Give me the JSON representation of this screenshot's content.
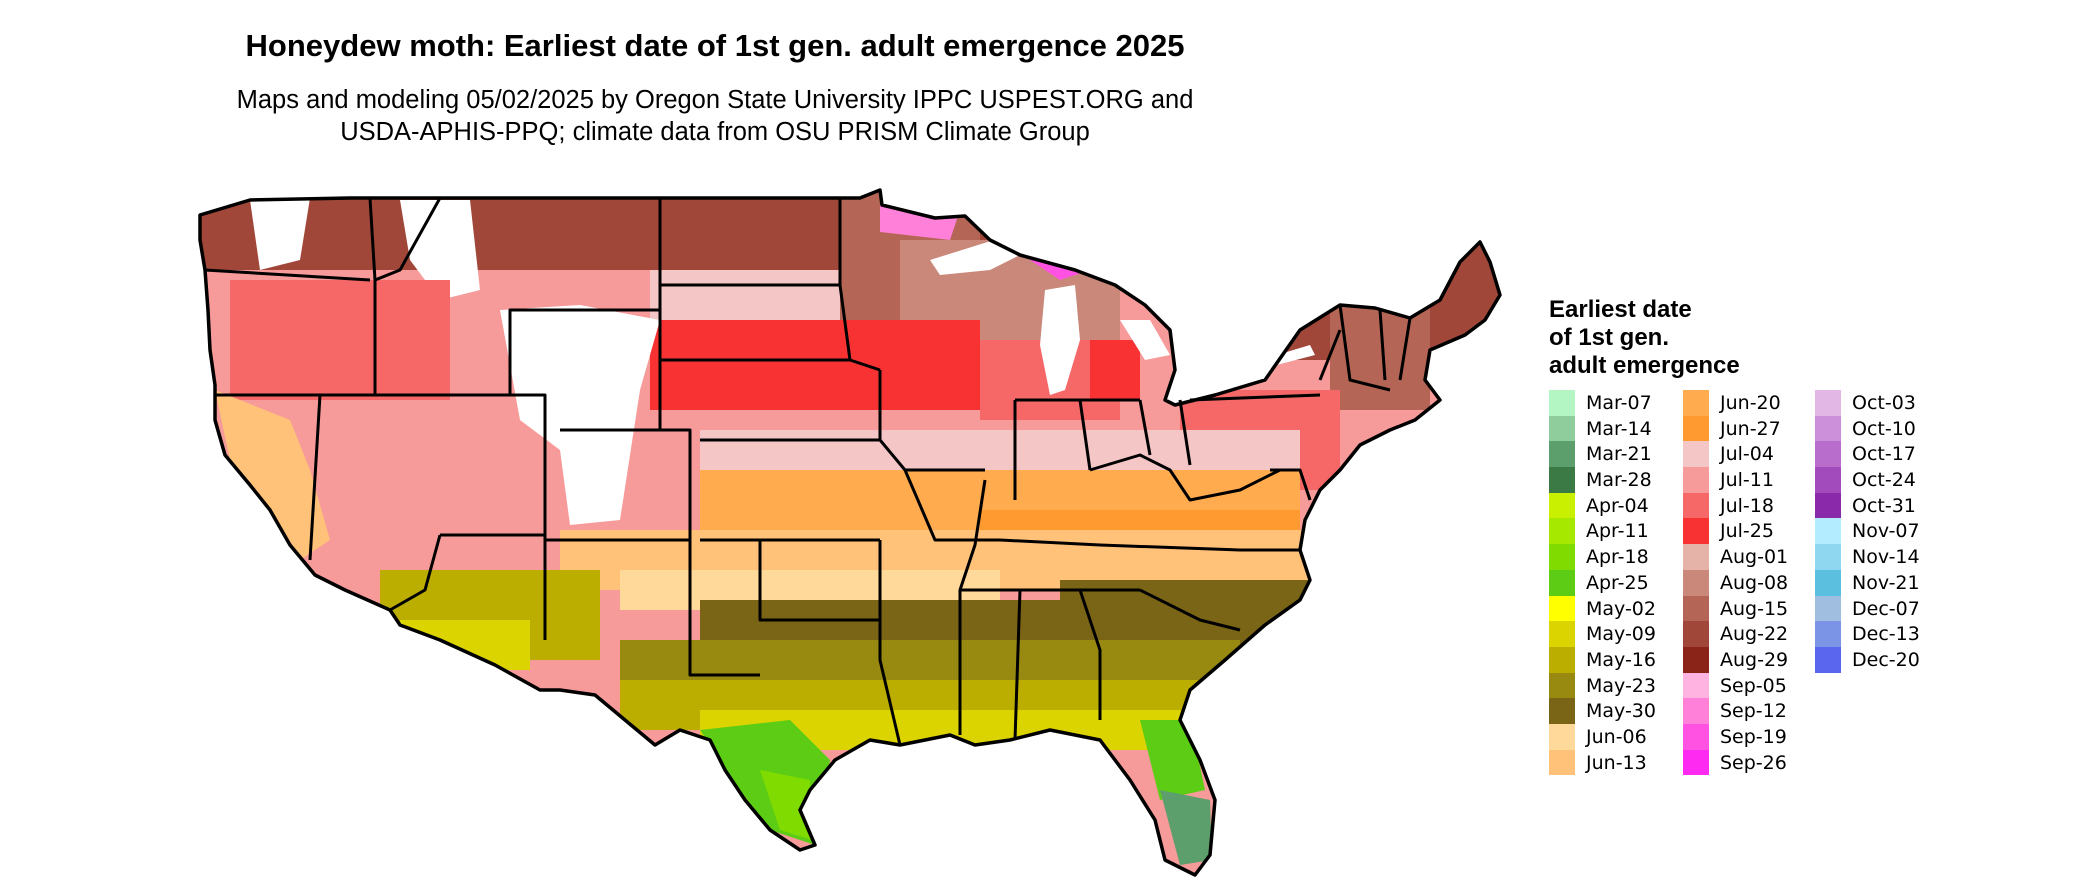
{
  "title": "Honeydew moth: Earliest date of 1st gen. adult emergence 2025",
  "subtitle": [
    "Maps and modeling 05/02/2025 by Oregon State University IPPC USPEST.ORG and",
    "USDA-APHIS-PPQ; climate data from OSU PRISM Climate Group"
  ],
  "legend": {
    "title": [
      "Earliest date",
      "of 1st gen.",
      "adult emergence"
    ],
    "columns": [
      [
        {
          "label": "Mar-07",
          "color": "#b3f5c3"
        },
        {
          "label": "Mar-14",
          "color": "#8fce9c"
        },
        {
          "label": "Mar-21",
          "color": "#5c9e6c"
        },
        {
          "label": "Mar-28",
          "color": "#3b7a45"
        },
        {
          "label": "Apr-04",
          "color": "#c8f000"
        },
        {
          "label": "Apr-11",
          "color": "#a6e800"
        },
        {
          "label": "Apr-18",
          "color": "#80dc00"
        },
        {
          "label": "Apr-25",
          "color": "#5ccc14"
        },
        {
          "label": "May-02",
          "color": "#ffff00"
        },
        {
          "label": "May-09",
          "color": "#dcd400"
        },
        {
          "label": "May-16",
          "color": "#bcae00"
        },
        {
          "label": "May-23",
          "color": "#988a10"
        },
        {
          "label": "May-30",
          "color": "#7a6416"
        },
        {
          "label": "Jun-06",
          "color": "#ffd99a"
        },
        {
          "label": "Jun-13",
          "color": "#ffc278"
        }
      ],
      [
        {
          "label": "Jun-20",
          "color": "#ffab4e"
        },
        {
          "label": "Jun-27",
          "color": "#ff9a30"
        },
        {
          "label": "Jul-04",
          "color": "#f5c6c6"
        },
        {
          "label": "Jul-11",
          "color": "#f79a9a"
        },
        {
          "label": "Jul-18",
          "color": "#f66868"
        },
        {
          "label": "Jul-25",
          "color": "#f83232"
        },
        {
          "label": "Aug-01",
          "color": "#e5b3a8"
        },
        {
          "label": "Aug-08",
          "color": "#c9887a"
        },
        {
          "label": "Aug-15",
          "color": "#b46555"
        },
        {
          "label": "Aug-22",
          "color": "#a0473a"
        },
        {
          "label": "Aug-29",
          "color": "#8a2418"
        },
        {
          "label": "Sep-05",
          "color": "#ffb3e0"
        },
        {
          "label": "Sep-12",
          "color": "#ff80d8"
        },
        {
          "label": "Sep-19",
          "color": "#ff52e2"
        },
        {
          "label": "Sep-26",
          "color": "#ff2af2"
        }
      ],
      [
        {
          "label": "Oct-03",
          "color": "#e2b7e5"
        },
        {
          "label": "Oct-10",
          "color": "#cc8fd9"
        },
        {
          "label": "Oct-17",
          "color": "#b86ccc"
        },
        {
          "label": "Oct-24",
          "color": "#a24bbd"
        },
        {
          "label": "Oct-31",
          "color": "#8a2aab"
        },
        {
          "label": "Nov-07",
          "color": "#b3ecff"
        },
        {
          "label": "Nov-14",
          "color": "#8fd6f0"
        },
        {
          "label": "Nov-21",
          "color": "#5bbfe0"
        },
        {
          "label": "Dec-07",
          "color": "#a0bee0"
        },
        {
          "label": "Dec-13",
          "color": "#7c94e6"
        },
        {
          "label": "Dec-20",
          "color": "#5a66ee"
        }
      ]
    ]
  }
}
